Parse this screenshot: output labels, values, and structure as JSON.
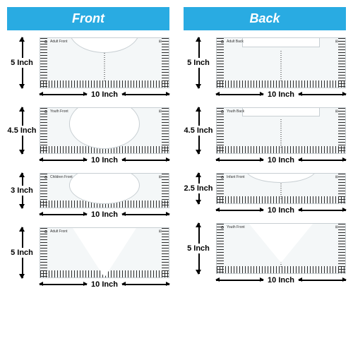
{
  "headers": {
    "front": "Front",
    "back": "Back",
    "bg_color": "#29abe2",
    "text_color": "#ffffff",
    "fontsize": 18
  },
  "label_fontsize": 11,
  "arrow_color": "#000000",
  "ruler_bg": "#f4f7f8",
  "ruler_border": "#c8cfd3",
  "tick_color": "#2a2a2a",
  "columns": {
    "front": [
      {
        "height_label": "5 Inch",
        "width_label": "10 Inch",
        "h_class": "h5",
        "neck": "round",
        "tl": "Adult Front"
      },
      {
        "height_label": "4.5 Inch",
        "width_label": "10 Inch",
        "h_class": "h45",
        "neck": "round-deep",
        "tl": "Youth Front"
      },
      {
        "height_label": "3 Inch",
        "width_label": "10 Inch",
        "h_class": "h3",
        "neck": "round-deep",
        "tl": "Children Front"
      },
      {
        "height_label": "5 Inch",
        "width_label": "10 Inch",
        "h_class": "h5",
        "neck": "v",
        "tl": "Adult Front",
        "v_depth": 70
      }
    ],
    "back": [
      {
        "height_label": "5 Inch",
        "width_label": "10 Inch",
        "h_class": "h5",
        "neck": "straight",
        "tl": "Adult Back"
      },
      {
        "height_label": "4.5 Inch",
        "width_label": "10 Inch",
        "h_class": "h45",
        "neck": "straight",
        "tl": "Youth Back"
      },
      {
        "height_label": "2.5 Inch",
        "width_label": "10 Inch",
        "h_class": "h25",
        "neck": "round",
        "tl": "Infant Front"
      },
      {
        "height_label": "5 Inch",
        "width_label": "10 Inch",
        "h_class": "h5",
        "neck": "v",
        "tl": "Youth Front",
        "v_depth": 55
      }
    ]
  }
}
